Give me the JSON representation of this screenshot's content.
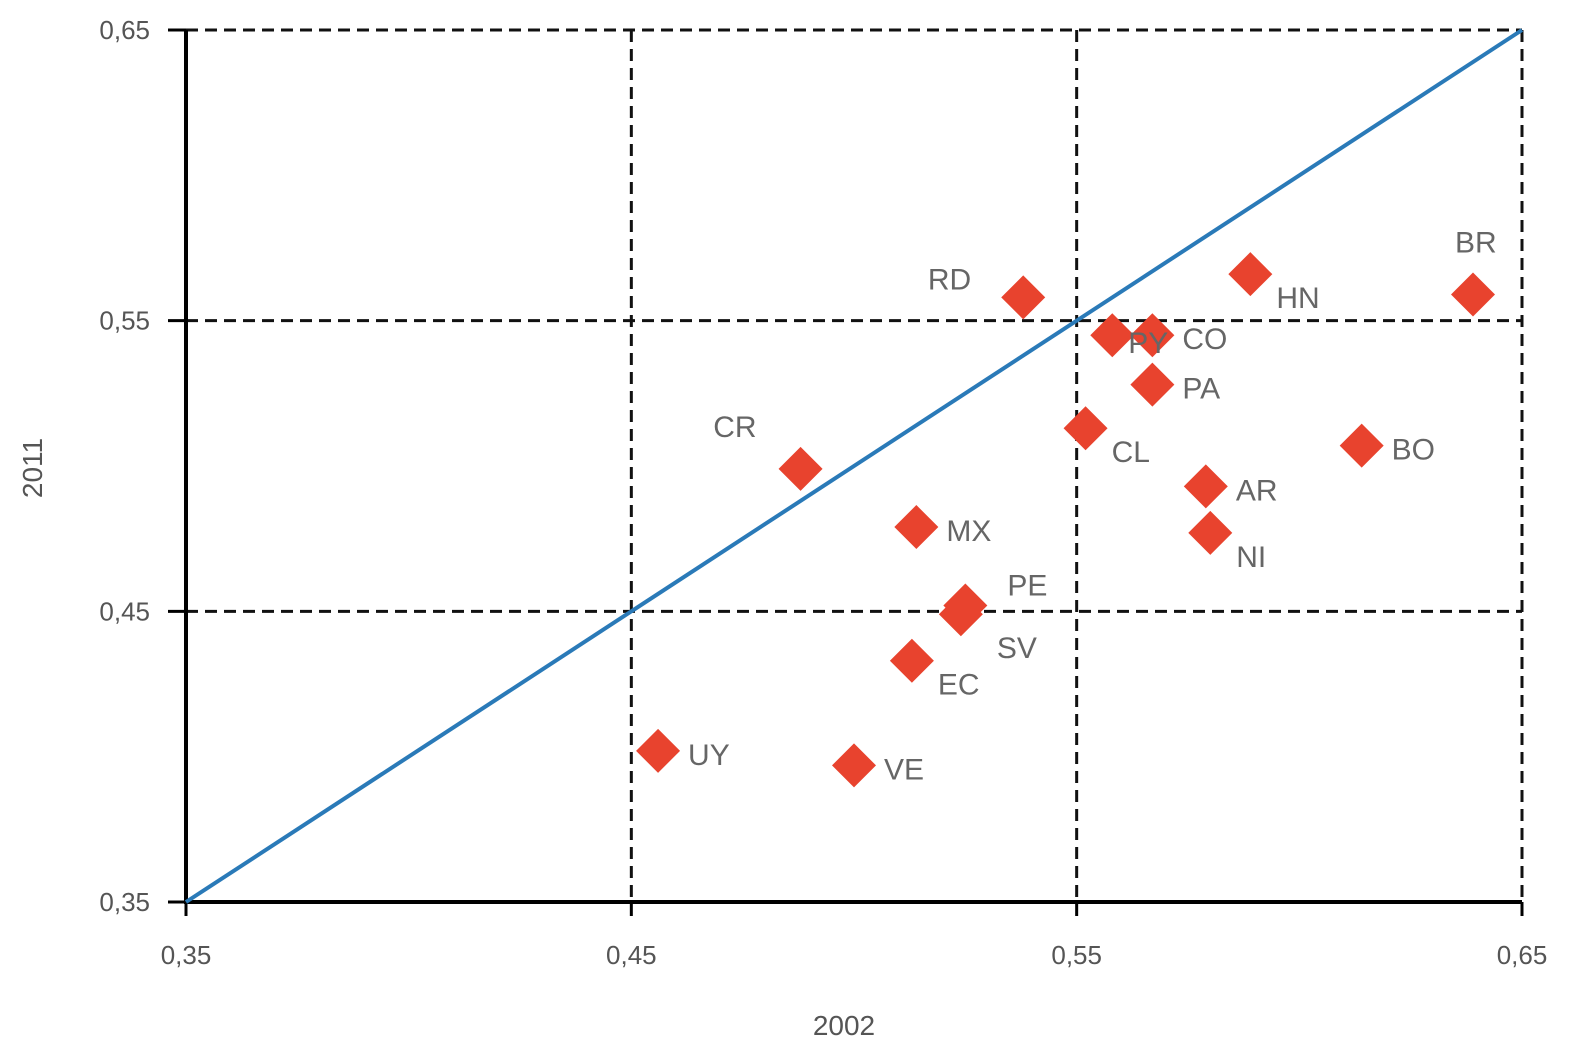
{
  "chart_data": {
    "type": "scatter",
    "title": "",
    "xlabel": "2002",
    "ylabel": "2011",
    "xlim": [
      0.35,
      0.65
    ],
    "ylim": [
      0.35,
      0.65
    ],
    "x_ticks": [
      0.35,
      0.45,
      0.55,
      0.65
    ],
    "y_ticks": [
      0.35,
      0.45,
      0.55,
      0.65
    ],
    "x_tick_labels": [
      "0,35",
      "0,45",
      "0,55",
      "0,65"
    ],
    "y_tick_labels": [
      "0,35",
      "0,45",
      "0,55",
      "0,65"
    ],
    "grid": "dashed",
    "reference_line": {
      "from": [
        0.35,
        0.35
      ],
      "to": [
        0.65,
        0.65
      ],
      "color": "#2a7ab8"
    },
    "marker": {
      "shape": "diamond",
      "color": "#e8432e"
    },
    "points": [
      {
        "label": "BR",
        "x": 0.639,
        "y": 0.559,
        "label_pos": "above"
      },
      {
        "label": "HN",
        "x": 0.589,
        "y": 0.566,
        "label_pos": "below-right"
      },
      {
        "label": "RD",
        "x": 0.538,
        "y": 0.558,
        "label_pos": "upper-left"
      },
      {
        "label": "PY",
        "x": 0.558,
        "y": 0.545,
        "label_pos": "above-right"
      },
      {
        "label": "CO",
        "x": 0.567,
        "y": 0.545,
        "label_pos": "right"
      },
      {
        "label": "PA",
        "x": 0.567,
        "y": 0.528,
        "label_pos": "right"
      },
      {
        "label": "CL",
        "x": 0.552,
        "y": 0.513,
        "label_pos": "below-right"
      },
      {
        "label": "BO",
        "x": 0.614,
        "y": 0.507,
        "label_pos": "right"
      },
      {
        "label": "CR",
        "x": 0.488,
        "y": 0.499,
        "label_pos": "upper-left"
      },
      {
        "label": "AR",
        "x": 0.579,
        "y": 0.493,
        "label_pos": "right"
      },
      {
        "label": "MX",
        "x": 0.514,
        "y": 0.479,
        "label_pos": "right"
      },
      {
        "label": "NI",
        "x": 0.58,
        "y": 0.477,
        "label_pos": "below-right"
      },
      {
        "label": "PE",
        "x": 0.525,
        "y": 0.452,
        "label_pos": "upper-right"
      },
      {
        "label": "SV",
        "x": 0.524,
        "y": 0.449,
        "label_pos": "below-right"
      },
      {
        "label": "EC",
        "x": 0.513,
        "y": 0.433,
        "label_pos": "below-right"
      },
      {
        "label": "UY",
        "x": 0.456,
        "y": 0.402,
        "label_pos": "right"
      },
      {
        "label": "VE",
        "x": 0.5,
        "y": 0.397,
        "label_pos": "right"
      }
    ]
  }
}
